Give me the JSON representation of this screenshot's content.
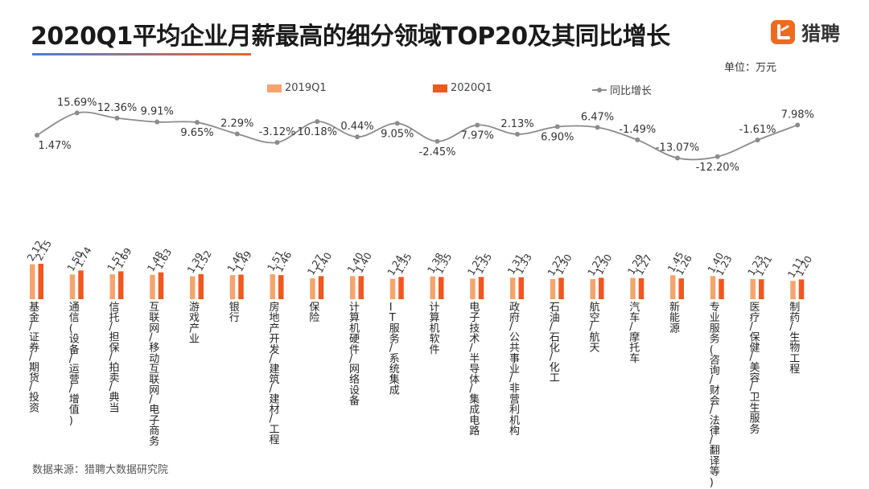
{
  "title": "2020Q1平均企业月薪最高的细分领域TOP20及其同比增长",
  "logo": {
    "name": "猎聘",
    "icon": "liepin-logo-icon",
    "color": "#f06a1e"
  },
  "unit": "单位：万元",
  "source": "数据来源：猎聘大数据研究院",
  "legend": {
    "s2019": "2019Q1",
    "s2020": "2020Q1",
    "growth": "同比增长"
  },
  "colors": {
    "s2019": "#f6a46e",
    "s2020": "#f0581f",
    "growth": "#8c8c8c"
  },
  "chart_data": {
    "type": "bar",
    "title": "2020Q1平均企业月薪最高的细分领域TOP20及其同比增长",
    "ylabel": "万元",
    "categories": [
      "基金/证券/期货/投资",
      "通信(设备/运营/增值)",
      "信托/担保/拍卖/典当",
      "互联网/移动互联网/电子商务",
      "游戏产业",
      "银行",
      "房地产开发/建筑/建材/工程",
      "保险",
      "计算机硬件/网络设备",
      "IT服务/系统集成",
      "计算机软件",
      "电子技术/半导体/集成电路",
      "政府/公共事业/非营利机构",
      "石油/石化/化工",
      "航空/航天",
      "汽车/摩托车",
      "新能源",
      "专业服务(咨询/财会/法律/翻译等)",
      "医疗/保健/美容/卫生服务",
      "制药/生物工程"
    ],
    "series": [
      {
        "name": "2019Q1",
        "type": "bar",
        "values": [
          2.12,
          1.5,
          1.51,
          1.48,
          1.39,
          1.46,
          1.51,
          1.27,
          1.4,
          1.24,
          1.38,
          1.25,
          1.31,
          1.22,
          1.22,
          1.29,
          1.45,
          1.4,
          1.23,
          1.11
        ],
        "labels": [
          "2.12",
          "1.50",
          "1.51",
          "1.48",
          "1.39",
          "1.46",
          "1.51",
          "1.27",
          "1.40",
          "1.24",
          "1.38",
          "1.25",
          "1.31",
          "1.22",
          "1.22",
          "1.29",
          "1.45",
          "1.40",
          "1.23",
          "1.11"
        ]
      },
      {
        "name": "2020Q1",
        "type": "bar",
        "values": [
          2.15,
          1.74,
          1.69,
          1.63,
          1.52,
          1.49,
          1.46,
          1.4,
          1.4,
          1.35,
          1.35,
          1.35,
          1.33,
          1.3,
          1.3,
          1.27,
          1.26,
          1.23,
          1.21,
          1.2
        ],
        "labels": [
          "2.15",
          "1.74",
          "1.69",
          "1.63",
          "1.52",
          "1.49",
          "1.46",
          "1.40",
          "1.40",
          "1.35",
          "1.35",
          "1.35",
          "1.33",
          "1.30",
          "1.30",
          "1.27",
          "1.26",
          "1.23",
          "1.21",
          "1.20"
        ]
      },
      {
        "name": "同比增长",
        "type": "line",
        "unit": "%",
        "values": [
          1.47,
          15.69,
          12.36,
          9.91,
          9.65,
          2.29,
          -3.12,
          10.18,
          0.44,
          9.05,
          -2.45,
          7.97,
          2.13,
          6.9,
          6.47,
          -1.49,
          -13.07,
          -12.2,
          -1.61,
          7.98
        ],
        "labels": [
          "1.47%",
          "15.69%",
          "12.36%",
          "9.91%",
          "9.65%",
          "2.29%",
          "-3.12%",
          "10.18%",
          "0.44%",
          "9.05%",
          "-2.45%",
          "7.97%",
          "2.13%",
          "6.90%",
          "6.47%",
          "-1.49%",
          "-13.07%",
          "-12.20%",
          "-1.61%",
          "7.98%"
        ]
      }
    ],
    "bar_ylim": [
      0,
      2.5
    ],
    "grid": false,
    "legend_position": "top-center"
  }
}
